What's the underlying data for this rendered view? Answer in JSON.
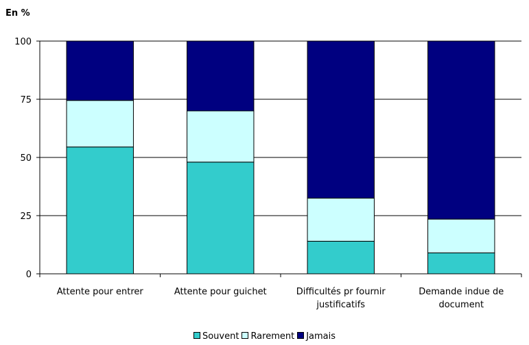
{
  "chart_data": {
    "type": "bar",
    "stacked": true,
    "unit_label": "En %",
    "title": "",
    "xlabel": "",
    "ylabel": "",
    "ylim": [
      0,
      100
    ],
    "yticks": [
      "0",
      "25",
      "50",
      "75",
      "100"
    ],
    "grid": true,
    "legend_position": "bottom",
    "categories": [
      [
        "Attente pour entrer"
      ],
      [
        "Attente pour guichet"
      ],
      [
        "Difficultés pr fournir",
        "justificatifs"
      ],
      [
        "Demande indue de",
        "document"
      ]
    ],
    "series": [
      {
        "name": "Souvent",
        "color": "#33cccc",
        "values": [
          54.5,
          48,
          14,
          9
        ]
      },
      {
        "name": "Rarement",
        "color": "#ccffff",
        "values": [
          20,
          22,
          18.5,
          14.5
        ]
      },
      {
        "name": "Jamais",
        "color": "#000080",
        "values": [
          25.5,
          30,
          67.5,
          76.5
        ]
      }
    ]
  }
}
